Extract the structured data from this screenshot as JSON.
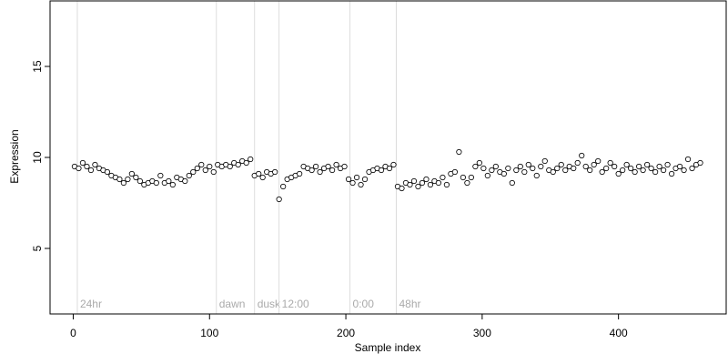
{
  "chart_data": {
    "type": "scatter",
    "x_label": "Sample index",
    "y_label": "Expression",
    "xlim": [
      -17,
      479
    ],
    "ylim": [
      1.4,
      18.6
    ],
    "xticks": [
      0,
      100,
      200,
      300,
      400
    ],
    "yticks": [
      5,
      10,
      15
    ],
    "annotations": [
      {
        "x": 3,
        "label": "24hr"
      },
      {
        "x": 105,
        "label": "dawn"
      },
      {
        "x": 133,
        "label": "dusk"
      },
      {
        "x": 151,
        "label": "12:00"
      },
      {
        "x": 203,
        "label": "0:00"
      },
      {
        "x": 237,
        "label": "48hr"
      }
    ],
    "series": [
      {
        "color": "#ffffff",
        "x": [
          1,
          4,
          7,
          10,
          13,
          16,
          19,
          22,
          25,
          28,
          31,
          34,
          37,
          40,
          43,
          46,
          49,
          52,
          55,
          58,
          61,
          64,
          67,
          70,
          73,
          76,
          79,
          82,
          85,
          88,
          91,
          94,
          97,
          100,
          103,
          106,
          109,
          112,
          115,
          118,
          121,
          124,
          127,
          130,
          133,
          136,
          139,
          142,
          145,
          148,
          151,
          154,
          157,
          160,
          163,
          166,
          169,
          172,
          175,
          178,
          181,
          184,
          187,
          190,
          193,
          196,
          199,
          202,
          205,
          208,
          211,
          214,
          217,
          220,
          223,
          226,
          229,
          232,
          235,
          238,
          241,
          244,
          247,
          250,
          253,
          256,
          259,
          262,
          265,
          268,
          271,
          274,
          277,
          280,
          283,
          286,
          289,
          292,
          295,
          298,
          301,
          304,
          307,
          310,
          313,
          316,
          319,
          322,
          325,
          328,
          331,
          334,
          337,
          340,
          343,
          346,
          349,
          352,
          355,
          358,
          361,
          364,
          367,
          370,
          373,
          376,
          379,
          382,
          385,
          388,
          391,
          394,
          397,
          400,
          403,
          406,
          409,
          412,
          415,
          418,
          421,
          424,
          427,
          430,
          433,
          436,
          439,
          442,
          445,
          448,
          451,
          454,
          457,
          460
        ],
        "values": [
          9.5,
          9.4,
          9.7,
          9.5,
          9.3,
          9.6,
          9.4,
          9.3,
          9.2,
          9.0,
          8.9,
          8.8,
          8.6,
          8.8,
          9.1,
          8.9,
          8.7,
          8.5,
          8.6,
          8.7,
          8.6,
          9.0,
          8.6,
          8.7,
          8.5,
          8.9,
          8.8,
          8.7,
          9.0,
          9.2,
          9.4,
          9.6,
          9.3,
          9.5,
          9.2,
          9.6,
          9.5,
          9.6,
          9.5,
          9.7,
          9.6,
          9.8,
          9.7,
          9.9,
          9.0,
          9.1,
          8.9,
          9.2,
          9.1,
          9.2,
          7.7,
          8.4,
          8.8,
          8.9,
          9.0,
          9.1,
          9.5,
          9.4,
          9.3,
          9.5,
          9.2,
          9.4,
          9.5,
          9.3,
          9.6,
          9.4,
          9.5,
          8.8,
          8.6,
          8.9,
          8.5,
          8.8,
          9.2,
          9.3,
          9.4,
          9.3,
          9.5,
          9.4,
          9.6,
          8.4,
          8.3,
          8.6,
          8.5,
          8.7,
          8.4,
          8.6,
          8.8,
          8.5,
          8.7,
          8.6,
          8.9,
          8.5,
          9.1,
          9.2,
          10.3,
          8.9,
          8.6,
          8.9,
          9.5,
          9.7,
          9.4,
          9.0,
          9.3,
          9.5,
          9.2,
          9.1,
          9.4,
          8.6,
          9.3,
          9.5,
          9.2,
          9.6,
          9.4,
          9.0,
          9.5,
          9.8,
          9.3,
          9.2,
          9.4,
          9.6,
          9.3,
          9.5,
          9.4,
          9.7,
          10.1,
          9.5,
          9.3,
          9.6,
          9.8,
          9.2,
          9.4,
          9.7,
          9.5,
          9.1,
          9.3,
          9.6,
          9.4,
          9.2,
          9.5,
          9.3,
          9.6,
          9.4,
          9.2,
          9.5,
          9.3,
          9.6,
          9.1,
          9.4,
          9.5,
          9.3,
          9.9,
          9.4,
          9.6,
          9.7
        ]
      }
    ]
  }
}
